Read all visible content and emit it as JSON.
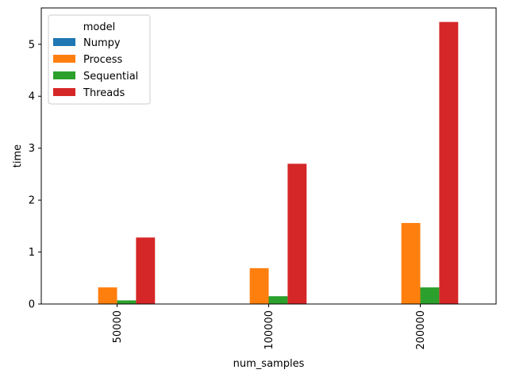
{
  "chart_data": {
    "type": "bar",
    "xlabel": "num_samples",
    "ylabel": "time",
    "categories": [
      "50000",
      "100000",
      "200000"
    ],
    "ylim": [
      0,
      5.7
    ],
    "yticks": [
      0,
      1,
      2,
      3,
      4,
      5
    ],
    "legend": {
      "title": "model",
      "placement": "top-left"
    },
    "series": [
      {
        "name": "Numpy",
        "color": "#1f77b4",
        "values": [
          0.0,
          0.0,
          0.0
        ]
      },
      {
        "name": "Process",
        "color": "#ff7f0e",
        "values": [
          0.32,
          0.69,
          1.56
        ]
      },
      {
        "name": "Sequential",
        "color": "#2ca02c",
        "values": [
          0.07,
          0.15,
          0.32
        ]
      },
      {
        "name": "Threads",
        "color": "#d62728",
        "values": [
          1.28,
          2.7,
          5.43
        ]
      }
    ],
    "grid": false
  }
}
